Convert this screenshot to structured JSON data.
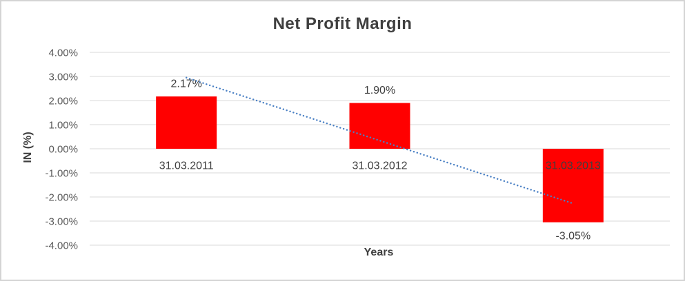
{
  "chart": {
    "title": "Net Profit Margin",
    "ylabel": "IN (%)",
    "xlabel": "Years"
  },
  "chart_data": {
    "type": "bar",
    "title": "Net Profit Margin",
    "xlabel": "Years",
    "ylabel": "IN (%)",
    "categories": [
      "31.03.2011",
      "31.03.2012",
      "31.03.2013"
    ],
    "values": [
      2.17,
      1.9,
      -3.05
    ],
    "data_labels": [
      "2.17%",
      "1.90%",
      "-3.05%"
    ],
    "ylim": [
      -4,
      4
    ],
    "ytick_step": 1,
    "ytick_values": [
      4,
      3,
      2,
      1,
      0,
      -1,
      -2,
      -3,
      -4
    ],
    "ytick_labels": [
      "4.00%",
      "3.00%",
      "2.00%",
      "1.00%",
      "0.00%",
      "-1.00%",
      "-2.00%",
      "-3.00%",
      "-4.00%"
    ],
    "grid": true,
    "legend": false,
    "bar_color": "#ff0000",
    "trendline": {
      "type": "linear",
      "style": "dotted",
      "color": "#4a80c4",
      "start_value": 2.95,
      "end_value": -2.27
    }
  },
  "colors": {
    "background": "#ffffff",
    "frame_border": "#d4d4d4",
    "gridline": "#d9d9d9",
    "tick_text": "#595959",
    "label_text": "#3f3f3f",
    "title_text": "#3f3f3f"
  }
}
